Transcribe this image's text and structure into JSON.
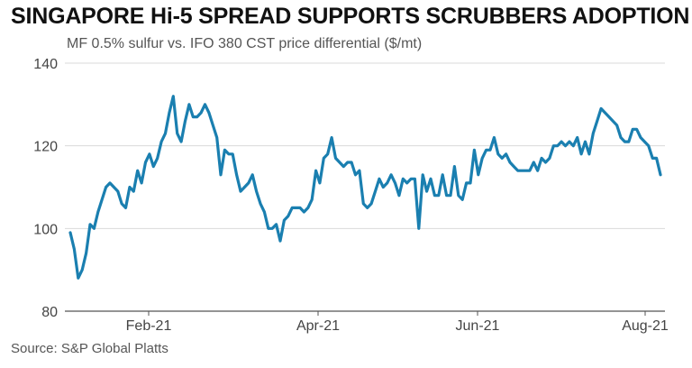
{
  "header": {
    "title": "SINGAPORE Hi-5 SPREAD SUPPORTS SCRUBBERS ADOPTION",
    "subtitle": "MF 0.5% sulfur vs. IFO 380 CST price differential ($/mt)"
  },
  "footer": {
    "source": "Source: S&P Global Platts"
  },
  "colors": {
    "line": "#1a7fb0",
    "grid": "#d9d9d9",
    "axis": "#555555"
  },
  "chart_data": {
    "type": "line",
    "title": "SINGAPORE Hi-5 SPREAD SUPPORTS SCRUBBERS ADOPTION",
    "subtitle": "MF 0.5% sulfur vs. IFO 380 CST price differential ($/mt)",
    "xlabel": "",
    "ylabel": "",
    "ylim": [
      80,
      140
    ],
    "yticks": [
      80,
      100,
      120,
      140
    ],
    "xticks": [
      "Feb-21",
      "Apr-21",
      "Jun-21",
      "Aug-21"
    ],
    "grid": true,
    "series": [
      {
        "values": [
          99,
          95,
          88,
          90,
          94,
          101,
          100,
          104,
          107,
          110,
          111,
          110,
          109,
          106,
          105,
          110,
          109,
          114,
          111,
          116,
          118,
          115,
          117,
          121,
          123,
          128,
          132,
          123,
          121,
          126,
          130,
          127,
          127,
          128,
          130,
          128,
          125,
          122,
          113,
          119,
          118,
          118,
          113,
          109,
          110,
          111,
          113,
          109,
          106,
          104,
          100,
          100,
          101,
          97,
          102,
          103,
          105,
          105,
          105,
          104,
          105,
          107,
          114,
          111,
          117,
          118,
          122,
          117,
          116,
          115,
          116,
          116,
          113,
          114,
          106,
          105,
          106,
          109,
          112,
          110,
          111,
          113,
          111,
          108,
          112,
          111,
          112,
          112,
          100,
          113,
          109,
          112,
          108,
          108,
          113,
          108,
          108,
          115,
          108,
          107,
          111,
          111,
          119,
          113,
          117,
          119,
          119,
          122,
          118,
          117,
          118,
          116,
          115,
          114,
          114,
          114,
          114,
          116,
          114,
          117,
          116,
          117,
          120,
          120,
          121,
          120,
          121,
          120,
          122,
          118,
          121,
          118,
          123,
          126,
          129,
          128,
          127,
          126,
          125,
          122,
          121,
          121,
          124,
          124,
          122,
          121,
          120,
          117,
          117,
          113
        ]
      }
    ]
  }
}
